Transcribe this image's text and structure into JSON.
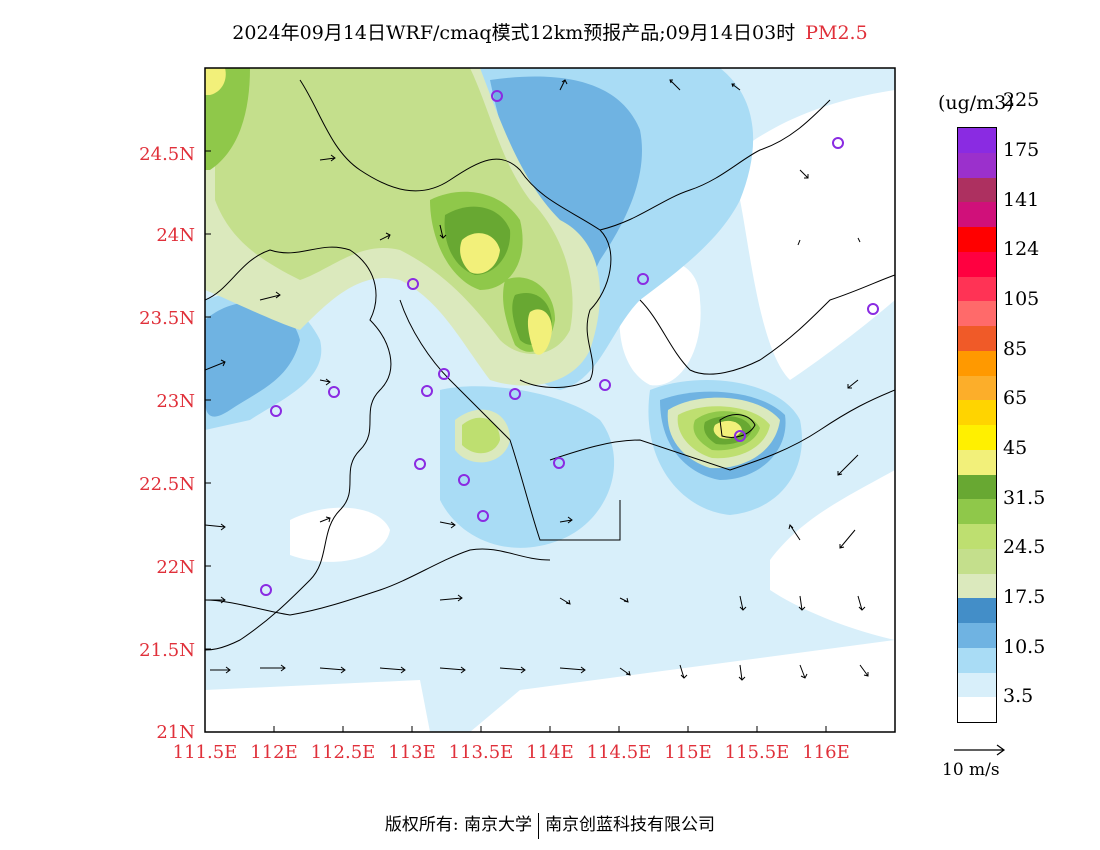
{
  "header": {
    "title": "2024年09月14日WRF/cmaq模式12km预报产品;09月14日03时",
    "product": "PM2.5"
  },
  "legend": {
    "unit": "(ug/m3)",
    "colors": [
      "#ffffff",
      "#d8effa",
      "#a9dcf5",
      "#6fb3e2",
      "#438ec8",
      "#dbe9bd",
      "#c4df8c",
      "#bedf70",
      "#8fc84a",
      "#68a832",
      "#f2f07a",
      "#fff000",
      "#ffd400",
      "#fcae2a",
      "#ff9900",
      "#f05a28",
      "#ff6a6a",
      "#ff3355",
      "#ff0040",
      "#ff0000",
      "#d0107a",
      "#ad3060",
      "#9b30cc",
      "#8a2be2"
    ],
    "labels": [
      "3.5",
      "10.5",
      "17.5",
      "24.5",
      "31.5",
      "45",
      "65",
      "85",
      "105",
      "124",
      "141",
      "175",
      "225"
    ]
  },
  "axes": {
    "x_ticks": [
      "111.5E",
      "112E",
      "112.5E",
      "113E",
      "113.5E",
      "114E",
      "114.5E",
      "115E",
      "115.5E",
      "116E"
    ],
    "y_ticks": [
      "21N",
      "21.5N",
      "22N",
      "22.5N",
      "23N",
      "23.5N",
      "24N",
      "24.5N"
    ]
  },
  "wind_reference": {
    "label": "10 m/s"
  },
  "footer": {
    "copyright_left": "版权所有: 南京大学",
    "copyright_right": "南京创蓝科技有限公司"
  }
}
